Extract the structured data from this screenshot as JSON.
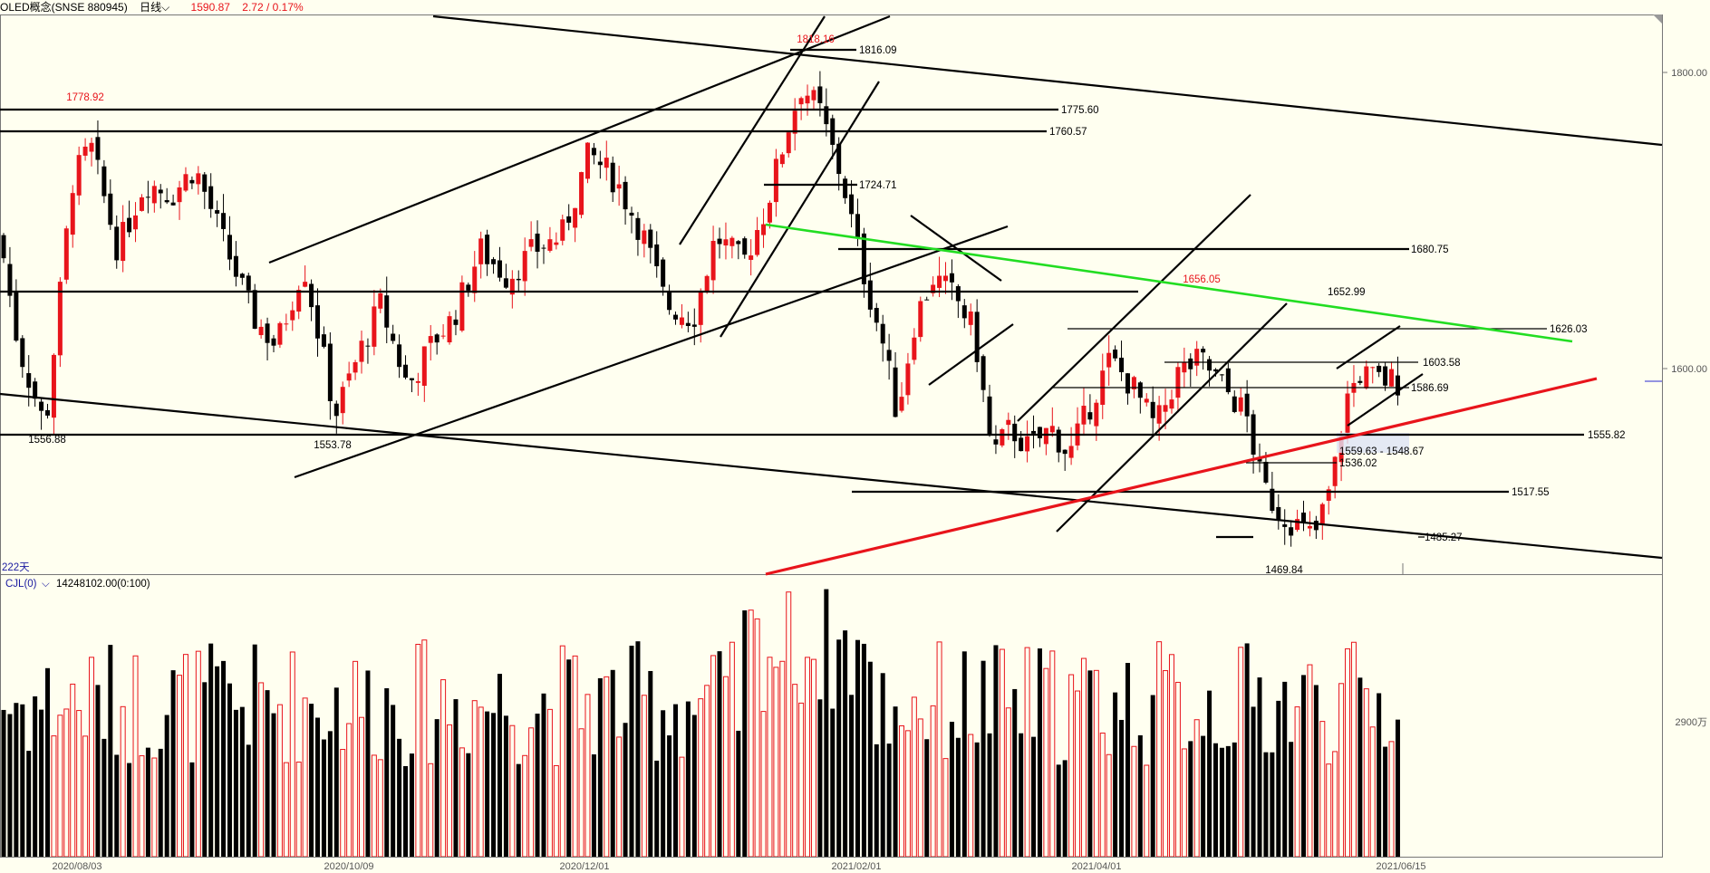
{
  "header": {
    "title": "OLED概念(SNSE 880945)",
    "period": "日线",
    "price": "1590.87",
    "change": "2.72 / 0.17%"
  },
  "colors": {
    "up": "#e8141b",
    "down": "#000000",
    "background": "#fffff0",
    "trend_green": "#22dd22",
    "trend_red": "#e8141b"
  },
  "main_panel": {
    "y_ticks": [
      "1800.00",
      "1600.00"
    ],
    "day_count": "222天",
    "level_labels": [
      "1816.09",
      "1775.60",
      "1760.57",
      "1724.71",
      "1680.75",
      "1652.99",
      "1626.03",
      "1603.58",
      "1586.69",
      "1555.82",
      "1559.63 - 1548.67",
      "1536.02",
      "1517.55",
      "1485.27"
    ],
    "peak_labels": [
      "1778.92",
      "1818.16",
      "1656.05"
    ],
    "trough_labels": [
      "1556.88",
      "1553.78",
      "1469.84"
    ]
  },
  "volume_panel": {
    "indicator": "CJL(0)",
    "value": "14248102.00(0:100)",
    "y_tick": "2900万"
  },
  "x_ticks": [
    "2020/08/03",
    "2020/10/09",
    "2020/12/01",
    "2021/02/01",
    "2021/04/01",
    "2021/06/15"
  ],
  "chart_data": {
    "type": "candlestick",
    "title": "OLED概念(SNSE 880945)",
    "ylim": [
      1455,
      1860
    ],
    "y_ticks": [
      1600,
      1800
    ],
    "x_tick_labels": [
      "2020/08/03",
      "2020/10/09",
      "2020/12/01",
      "2021/02/01",
      "2021/04/01",
      "2021/06/15"
    ],
    "highs": [
      {
        "label": "1778.92",
        "value": 1778.92
      },
      {
        "label": "1818.16",
        "value": 1818.16
      },
      {
        "label": "1656.05",
        "value": 1656.05
      }
    ],
    "lows": [
      {
        "label": "1556.88",
        "value": 1556.88
      },
      {
        "label": "1553.78",
        "value": 1553.78
      },
      {
        "label": "1469.84",
        "value": 1469.84
      }
    ],
    "horizontal_levels": [
      1816.09,
      1775.6,
      1760.57,
      1724.71,
      1680.75,
      1652.99,
      1626.03,
      1603.58,
      1586.69,
      1555.82,
      1536.02,
      1517.55,
      1485.27
    ],
    "zone": [
      1548.67,
      1559.63
    ],
    "last_close": 1590.87,
    "volume": {
      "last": 14248102.0,
      "y_tick_label": "2900万"
    }
  }
}
